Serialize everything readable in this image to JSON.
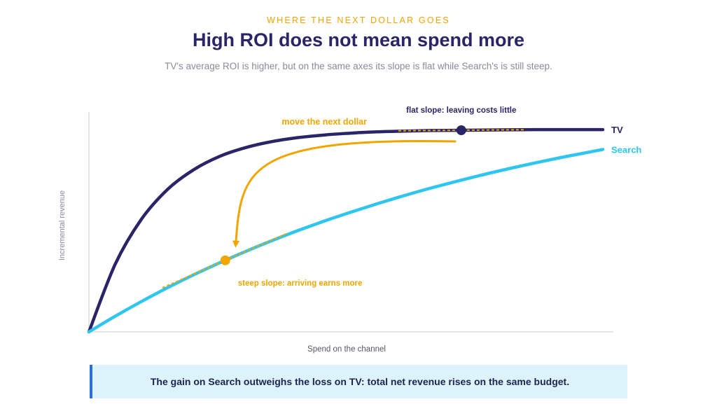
{
  "eyebrow": "WHERE THE NEXT DOLLAR GOES",
  "title": "High ROI does not mean spend more",
  "subtitle": "TV's average ROI is higher, but on the same axes its slope is flat while Search's is still steep.",
  "callout": "The gain on Search outweighs the loss on TV: total net revenue rises on the same budget.",
  "colors": {
    "tv": "#2a2566",
    "search": "#2ec5ee",
    "accent": "#f0a500",
    "axis": "#cccccc"
  },
  "chart_data": {
    "type": "line",
    "xlabel": "Spend on the channel",
    "ylabel": "Incremental revenue",
    "xlim": [
      0,
      100
    ],
    "ylim": [
      0,
      100
    ],
    "series": [
      {
        "name": "TV",
        "x": [
          0,
          5,
          10,
          15,
          20,
          25,
          30,
          35,
          40,
          45,
          50,
          55,
          60,
          65,
          70,
          75,
          80,
          85,
          90,
          95,
          98
        ],
        "y": [
          0,
          30.7,
          51.2,
          64.8,
          73.8,
          79.9,
          83.9,
          86.6,
          88.4,
          89.6,
          90.4,
          91.0,
          91.3,
          91.6,
          91.7,
          91.8,
          91.9,
          92.0,
          92.0,
          92.0,
          92.0
        ]
      },
      {
        "name": "Search",
        "x": [
          0,
          5,
          10,
          15,
          20,
          25,
          30,
          35,
          40,
          45,
          50,
          55,
          60,
          65,
          70,
          75,
          80,
          85,
          90,
          95,
          98
        ],
        "y": [
          0,
          7.1,
          13.8,
          20.1,
          26.0,
          31.5,
          36.7,
          41.6,
          46.2,
          50.5,
          54.5,
          58.3,
          61.9,
          65.3,
          68.4,
          71.4,
          74.2,
          76.8,
          79.3,
          81.6,
          73.9
        ]
      }
    ],
    "markers": [
      {
        "series": "TV",
        "x": 71,
        "label": "flat slope: leaving costs little"
      },
      {
        "series": "Search",
        "x": 26,
        "label": "steep slope: arriving earns more"
      }
    ],
    "arrow_label": "move the next dollar",
    "grid": false,
    "legend": "inline-right"
  }
}
